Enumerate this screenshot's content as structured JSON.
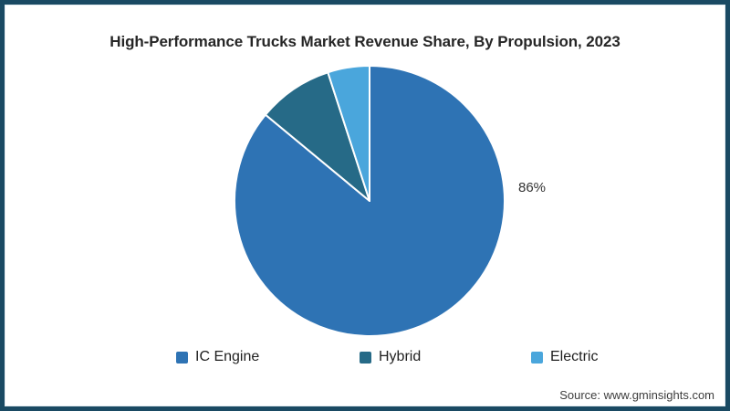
{
  "frame": {
    "border_color": "#1a4a63",
    "background_color": "#ffffff"
  },
  "chart_data": {
    "type": "pie",
    "title": "High-Performance Trucks Market Revenue Share, By Propulsion, 2023",
    "categories": [
      "IC Engine",
      "Hybrid",
      "Electric"
    ],
    "values": [
      86,
      9,
      5
    ],
    "colors": [
      "#2e73b4",
      "#266a87",
      "#4aa6dc"
    ],
    "start_angle_deg": 0,
    "direction": "clockwise",
    "slice_border_color": "#ffffff",
    "legend_position": "bottom",
    "data_labels": [
      {
        "slice": "IC Engine",
        "text": "86%"
      }
    ]
  },
  "legend": {
    "items": [
      {
        "label": "IC Engine",
        "color": "#2e73b4"
      },
      {
        "label": "Hybrid",
        "color": "#266a87"
      },
      {
        "label": "Electric",
        "color": "#4aa6dc"
      }
    ]
  },
  "source": {
    "label": "Source: www.gminsights.com"
  }
}
